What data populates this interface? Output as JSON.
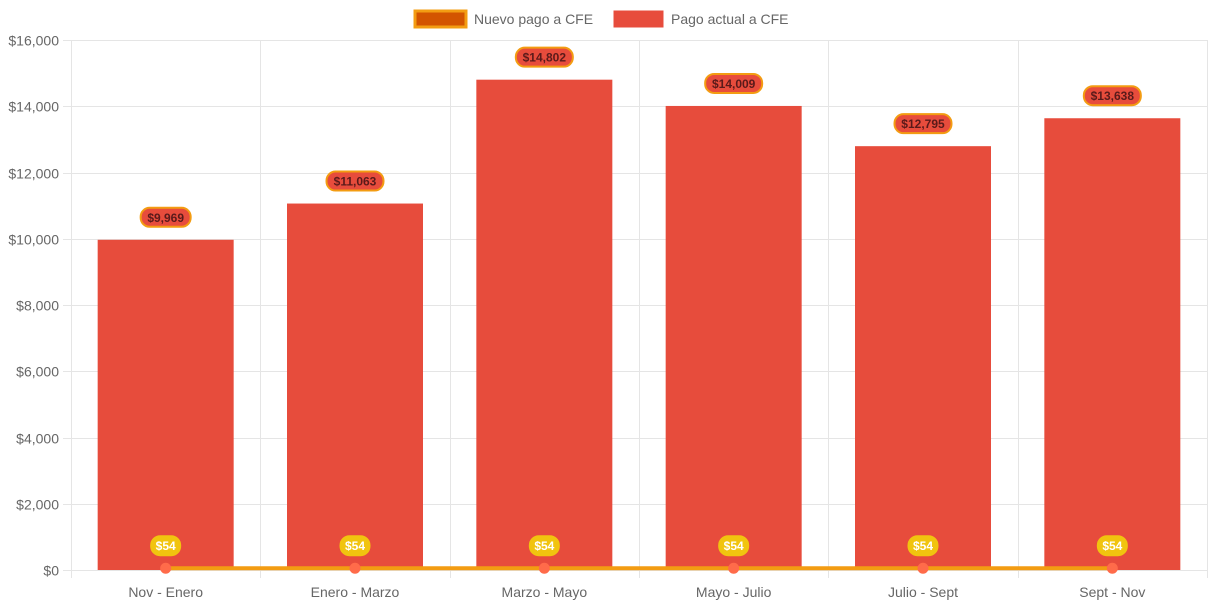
{
  "chart_data": {
    "type": "bar",
    "categories": [
      "Nov - Enero",
      "Enero - Marzo",
      "Marzo - Mayo",
      "Mayo - Julio",
      "Julio - Sept",
      "Sept - Nov"
    ],
    "series": [
      {
        "name": "Nuevo pago a CFE",
        "type": "line",
        "values": [
          54,
          54,
          54,
          54,
          54,
          54
        ],
        "data_labels": [
          "$54",
          "$54",
          "$54",
          "$54",
          "$54",
          "$54"
        ],
        "color": "#f39c12",
        "point_color": "#ff6b4a",
        "legend_fill": "#d35400"
      },
      {
        "name": "Pago actual a CFE",
        "type": "bar",
        "values": [
          9969,
          11063,
          14802,
          14009,
          12795,
          13638
        ],
        "data_labels": [
          "$9,969",
          "$11,063",
          "$14,802",
          "$14,009",
          "$12,795",
          "$13,638"
        ],
        "color": "#e74c3c"
      }
    ],
    "ylim": [
      0,
      16000
    ],
    "y_ticks": [
      0,
      2000,
      4000,
      6000,
      8000,
      10000,
      12000,
      14000,
      16000
    ],
    "y_tick_labels": [
      "$0",
      "$2,000",
      "$4,000",
      "$6,000",
      "$8,000",
      "$10,000",
      "$12,000",
      "$14,000",
      "$16,000"
    ],
    "title": "",
    "xlabel": "",
    "ylabel": "",
    "grid": true,
    "legend_position": "top-center",
    "colors": {
      "grid": "#e5e5e5",
      "label_badge_bar_fill": "#e74c3c",
      "label_badge_bar_border": "#f39c12",
      "label_badge_line_fill": "#f1c40f"
    }
  }
}
